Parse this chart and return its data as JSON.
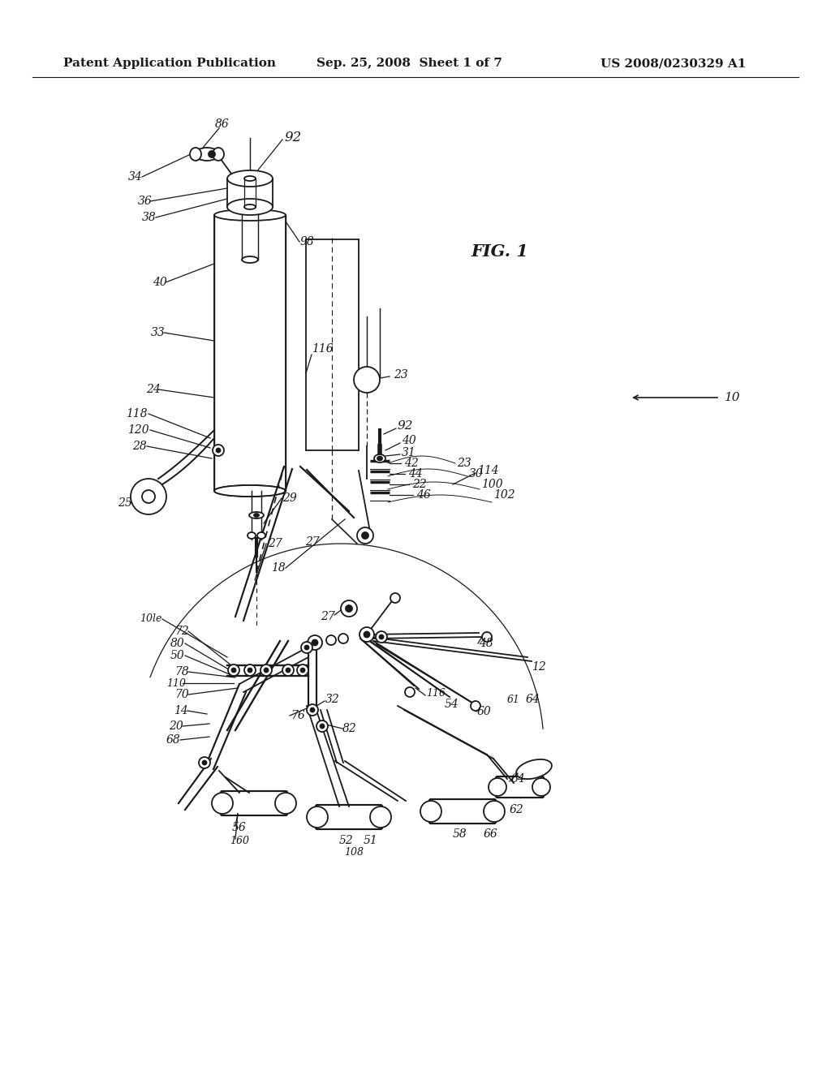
{
  "background_color": "#ffffff",
  "header_left": "Patent Application Publication",
  "header_center": "Sep. 25, 2008  Sheet 1 of 7",
  "header_right": "US 2008/0230329 A1",
  "header_fontsize": 11,
  "drawing_color": "#1a1a1a",
  "line_width": 1.3
}
